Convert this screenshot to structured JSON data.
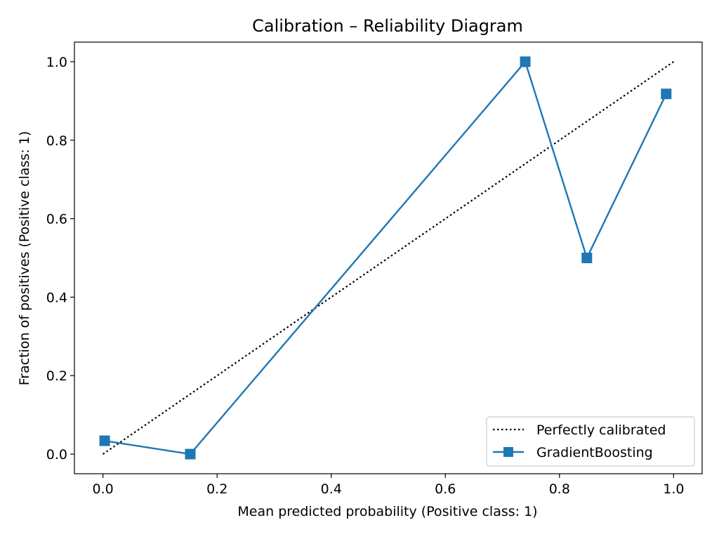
{
  "chart_data": {
    "type": "line",
    "title": "Calibration – Reliability Diagram",
    "xlabel": "Mean predicted probability (Positive class: 1)",
    "ylabel": "Fraction of positives (Positive class: 1)",
    "xlim": [
      -0.05,
      1.05
    ],
    "ylim": [
      -0.05,
      1.05
    ],
    "xticks": [
      0.0,
      0.2,
      0.4,
      0.6,
      0.8,
      1.0
    ],
    "yticks": [
      0.0,
      0.2,
      0.4,
      0.6,
      0.8,
      1.0
    ],
    "tick_labels_x": [
      "0.0",
      "0.2",
      "0.4",
      "0.6",
      "0.8",
      "1.0"
    ],
    "tick_labels_y": [
      "0.0",
      "0.2",
      "0.4",
      "0.6",
      "0.8",
      "1.0"
    ],
    "grid": false,
    "legend_position": "lower-right",
    "series": [
      {
        "name": "Perfectly calibrated",
        "style": "dotted",
        "color": "#000000",
        "x": [
          0.0,
          1.0
        ],
        "y": [
          0.0,
          1.0
        ]
      },
      {
        "name": "GradientBoosting",
        "style": "solid",
        "marker": "square",
        "color": "#1f77b4",
        "x": [
          0.003,
          0.153,
          0.74,
          0.848,
          0.987
        ],
        "y": [
          0.034,
          0.0,
          1.0,
          0.5,
          0.918
        ]
      }
    ]
  }
}
